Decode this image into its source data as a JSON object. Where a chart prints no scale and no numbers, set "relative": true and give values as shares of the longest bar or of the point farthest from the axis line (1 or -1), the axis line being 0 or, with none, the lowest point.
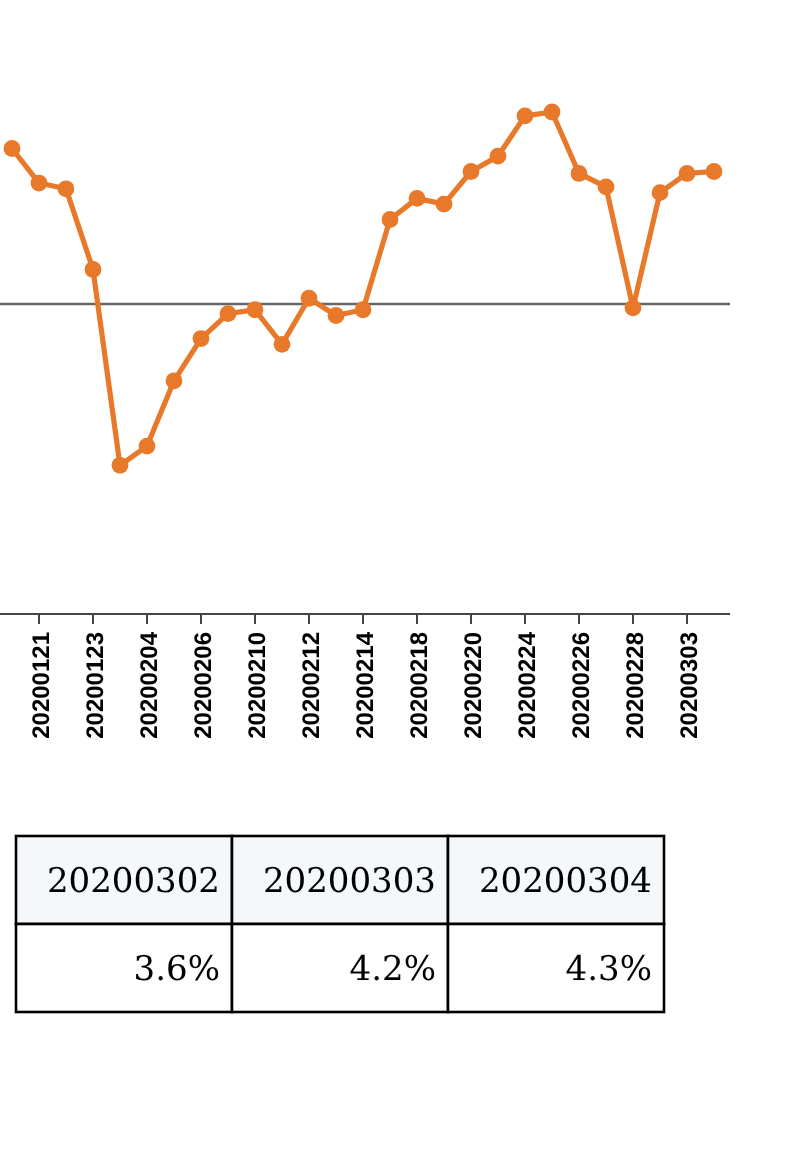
{
  "chart_data": [
    {
      "type": "line",
      "categories": [
        null,
        "20200121",
        null,
        "20200123",
        null,
        "20200204",
        null,
        "20200206",
        null,
        "20200210",
        null,
        "20200212",
        null,
        "20200214",
        null,
        "20200218",
        null,
        "20200220",
        null,
        "20200224",
        null,
        "20200226",
        null,
        "20200228",
        null,
        "20200303",
        null
      ],
      "series": [
        {
          "color": "#e8782a",
          "values": [
            0.81,
            0.63,
            0.6,
            0.18,
            -0.84,
            -0.74,
            -0.4,
            -0.18,
            -0.05,
            -0.03,
            -0.21,
            0.03,
            -0.06,
            -0.03,
            0.44,
            0.55,
            0.52,
            0.69,
            0.77,
            0.98,
            1,
            0.68,
            0.61,
            -0.02,
            0.58,
            0.68,
            0.69
          ]
        }
      ],
      "relative": true,
      "tick_labels": "x",
      "marker": "circle"
    },
    {
      "type": "other",
      "categories": [
        "20200302",
        "20200303",
        "20200304"
      ],
      "value_labels": [
        "3.6%",
        "4.2%",
        "4.3%"
      ]
    }
  ]
}
